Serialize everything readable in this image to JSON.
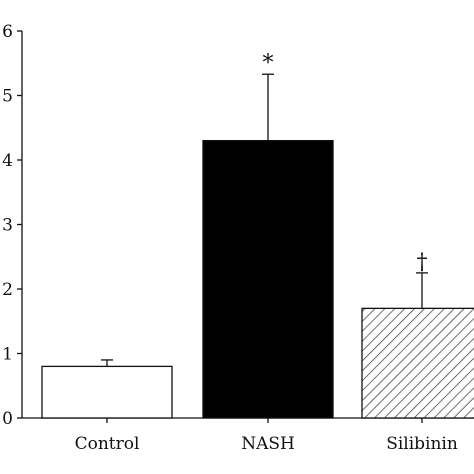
{
  "chart_data": {
    "type": "bar",
    "categories": [
      "Control",
      "NASH",
      "Silibinin"
    ],
    "values": [
      0.8,
      4.3,
      1.7
    ],
    "errors": [
      0.1,
      1.03,
      0.55
    ],
    "significance_marks": [
      "",
      "*",
      "†"
    ],
    "bar_fills": [
      "#ffffff",
      "#000000",
      "hatched"
    ],
    "yticks": [
      "0",
      "1",
      "2",
      "3",
      "4",
      "5",
      "6"
    ],
    "ylim": [
      0,
      6
    ],
    "title": "",
    "xlabel": "",
    "ylabel": "",
    "grid": false
  }
}
